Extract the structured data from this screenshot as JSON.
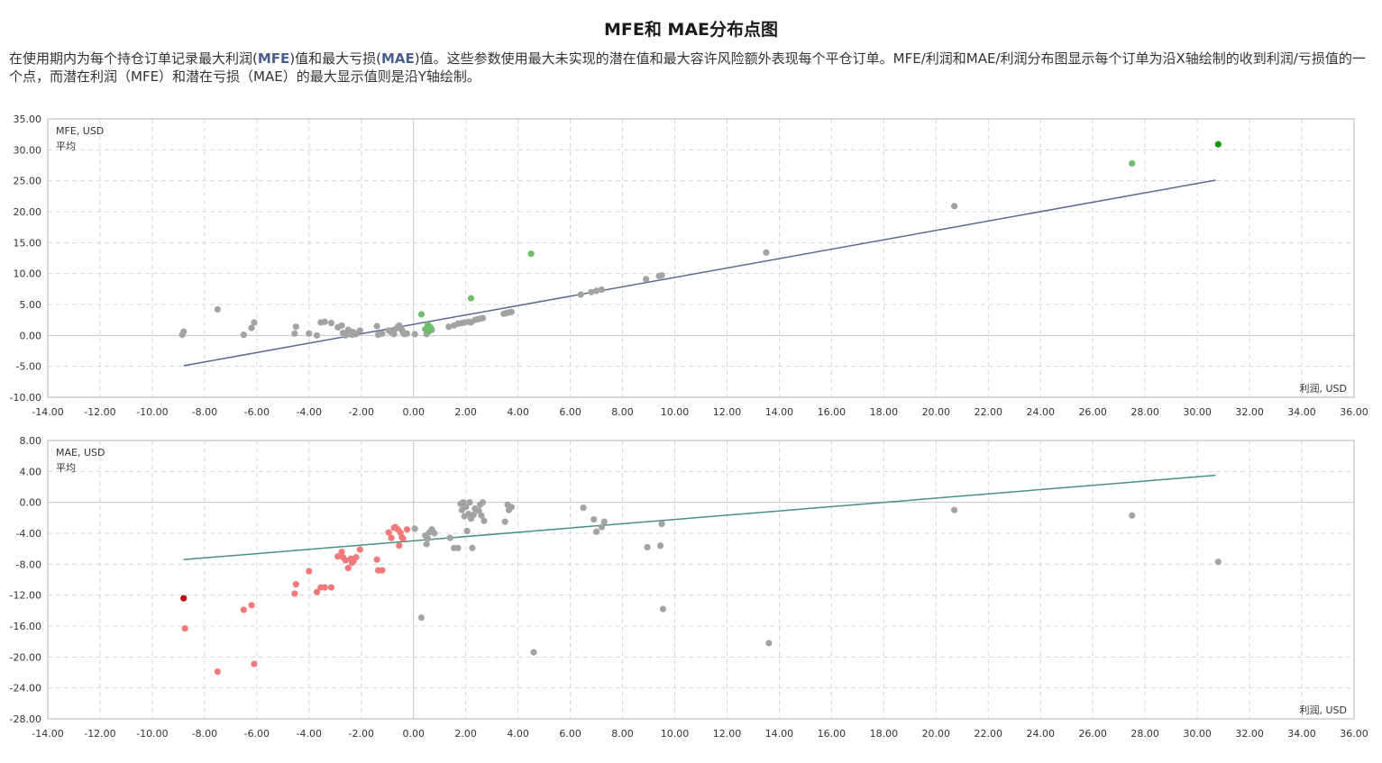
{
  "page": {
    "title": "MFE和 MAE分布点图",
    "desc": {
      "p1": "在使用期内为每个持仓订单记录最大利润(",
      "mfe": "MFE",
      "p2": ")值和最大亏损(",
      "mae": "MAE",
      "p3": ")值。这些参数使用最大未实现的潜在值和最大容许风险额外表现每个平仓订单。MFE/利润和MAE/利润分布图显示每个订单为沿X轴绘制的收到利润/亏损值的一个点，而潜在利润（MFE）和潜在亏损（MAE）的最大显示值则是沿Y轴绘制。"
    }
  },
  "colors": {
    "gray": "#a3a3a3",
    "mfe_green": "#6cbf6c",
    "mfe_green_dark": "#119911",
    "mfe_line": "#5a6a94",
    "mae_red": "#f07a7a",
    "mae_red_dark": "#b81010",
    "mae_line": "#4a9088"
  },
  "chart_data": [
    {
      "type": "scatter",
      "id": "mfe",
      "legend": [
        "MFE, USD",
        "平均"
      ],
      "xlabel": "利润, USD",
      "xlim": [
        -14,
        36
      ],
      "ylim": [
        -10,
        35
      ],
      "xticks": [
        "-14.00",
        "-12.00",
        "-10.00",
        "-8.00",
        "-6.00",
        "-4.00",
        "-2.00",
        "0.00",
        "2.00",
        "4.00",
        "6.00",
        "8.00",
        "10.00",
        "12.00",
        "14.00",
        "16.00",
        "18.00",
        "20.00",
        "22.00",
        "24.00",
        "26.00",
        "28.00",
        "30.00",
        "32.00",
        "34.00",
        "36.00"
      ],
      "yticks": [
        "-10.00",
        "-5.00",
        "0.00",
        "5.00",
        "10.00",
        "15.00",
        "20.00",
        "25.00",
        "30.00",
        "35.00"
      ],
      "avg_line": [
        [
          -8.8,
          -4.9
        ],
        [
          30.7,
          25.1
        ]
      ],
      "points_gray": [
        [
          -8.85,
          0.1
        ],
        [
          -8.8,
          0.6
        ],
        [
          -7.5,
          4.2
        ],
        [
          -6.5,
          0.1
        ],
        [
          -6.2,
          1.2
        ],
        [
          -6.1,
          2.1
        ],
        [
          -4.55,
          0.3
        ],
        [
          -4.5,
          1.4
        ],
        [
          -4.0,
          0.3
        ],
        [
          -3.7,
          0.0
        ],
        [
          -3.55,
          2.1
        ],
        [
          -3.4,
          2.2
        ],
        [
          -3.15,
          2.0
        ],
        [
          -2.9,
          1.3
        ],
        [
          -2.75,
          1.6
        ],
        [
          -2.7,
          0.4
        ],
        [
          -2.6,
          0.0
        ],
        [
          -2.5,
          0.9
        ],
        [
          -2.4,
          0.6
        ],
        [
          -2.35,
          0.1
        ],
        [
          -2.3,
          0.5
        ],
        [
          -2.2,
          0.2
        ],
        [
          -2.05,
          0.8
        ],
        [
          -1.4,
          1.5
        ],
        [
          -1.35,
          0.1
        ],
        [
          -1.2,
          0.3
        ],
        [
          -0.95,
          0.8
        ],
        [
          -0.85,
          0.5
        ],
        [
          -0.75,
          0.2
        ],
        [
          -0.7,
          1.0
        ],
        [
          -0.6,
          1.4
        ],
        [
          -0.55,
          1.6
        ],
        [
          -0.5,
          1.2
        ],
        [
          -0.45,
          0.9
        ],
        [
          -0.4,
          0.5
        ],
        [
          -0.35,
          0.2
        ],
        [
          -0.25,
          0.3
        ],
        [
          0.05,
          0.2
        ],
        [
          0.5,
          0.2
        ],
        [
          0.7,
          0.9
        ],
        [
          1.35,
          1.4
        ],
        [
          1.55,
          1.6
        ],
        [
          1.7,
          1.9
        ],
        [
          1.85,
          2.0
        ],
        [
          1.95,
          2.1
        ],
        [
          2.1,
          2.2
        ],
        [
          2.2,
          2.1
        ],
        [
          2.35,
          2.5
        ],
        [
          2.45,
          2.6
        ],
        [
          2.55,
          2.7
        ],
        [
          2.65,
          2.8
        ],
        [
          3.45,
          3.5
        ],
        [
          3.55,
          3.6
        ],
        [
          3.65,
          3.7
        ],
        [
          3.75,
          3.8
        ],
        [
          6.4,
          6.6
        ],
        [
          6.8,
          7.0
        ],
        [
          7.0,
          7.2
        ],
        [
          7.2,
          7.4
        ],
        [
          8.9,
          9.1
        ],
        [
          9.4,
          9.6
        ],
        [
          9.5,
          9.7
        ],
        [
          13.5,
          13.4
        ],
        [
          20.7,
          20.9
        ]
      ],
      "points_green": [
        [
          0.3,
          3.4
        ],
        [
          0.45,
          1.0
        ],
        [
          0.55,
          1.7
        ],
        [
          0.6,
          0.7
        ],
        [
          0.65,
          1.3
        ],
        [
          2.2,
          6.0
        ],
        [
          4.5,
          13.2
        ],
        [
          27.5,
          27.8
        ]
      ],
      "points_green_dark": [
        [
          30.8,
          30.9
        ]
      ]
    },
    {
      "type": "scatter",
      "id": "mae",
      "legend": [
        "MAE, USD",
        "平均"
      ],
      "xlabel": "利润, USD",
      "xlim": [
        -14,
        36
      ],
      "ylim": [
        -28,
        8
      ],
      "xticks": [
        "-14.00",
        "-12.00",
        "-10.00",
        "-8.00",
        "-6.00",
        "-4.00",
        "-2.00",
        "0.00",
        "2.00",
        "4.00",
        "6.00",
        "8.00",
        "10.00",
        "12.00",
        "14.00",
        "16.00",
        "18.00",
        "20.00",
        "22.00",
        "24.00",
        "26.00",
        "28.00",
        "30.00",
        "32.00",
        "34.00",
        "36.00"
      ],
      "yticks": [
        "-28.00",
        "-24.00",
        "-20.00",
        "-16.00",
        "-12.00",
        "-8.00",
        "-4.00",
        "0.00",
        "4.00",
        "8.00"
      ],
      "avg_line": [
        [
          -8.8,
          -7.4
        ],
        [
          30.7,
          3.5
        ]
      ],
      "points_red": [
        [
          -8.75,
          -16.3
        ],
        [
          -7.5,
          -21.9
        ],
        [
          -6.5,
          -13.9
        ],
        [
          -6.2,
          -13.3
        ],
        [
          -6.1,
          -20.9
        ],
        [
          -4.5,
          -10.6
        ],
        [
          -4.55,
          -11.8
        ],
        [
          -4.0,
          -8.9
        ],
        [
          -3.7,
          -11.6
        ],
        [
          -3.55,
          -11.0
        ],
        [
          -3.4,
          -11.0
        ],
        [
          -3.15,
          -11.0
        ],
        [
          -2.9,
          -7.0
        ],
        [
          -2.75,
          -6.4
        ],
        [
          -2.7,
          -7.1
        ],
        [
          -2.6,
          -7.5
        ],
        [
          -2.5,
          -8.5
        ],
        [
          -2.4,
          -7.3
        ],
        [
          -2.35,
          -7.8
        ],
        [
          -2.3,
          -7.6
        ],
        [
          -2.2,
          -7.1
        ],
        [
          -2.05,
          -6.1
        ],
        [
          -1.4,
          -7.4
        ],
        [
          -1.35,
          -8.8
        ],
        [
          -1.2,
          -8.8
        ],
        [
          -0.95,
          -3.9
        ],
        [
          -0.85,
          -4.6
        ],
        [
          -0.75,
          -3.3
        ],
        [
          -0.7,
          -3.2
        ],
        [
          -0.6,
          -3.5
        ],
        [
          -0.55,
          -5.6
        ],
        [
          -0.5,
          -3.9
        ],
        [
          -0.45,
          -4.5
        ],
        [
          -0.4,
          -4.7
        ],
        [
          -0.25,
          -3.5
        ]
      ],
      "points_red_dark": [
        [
          -8.8,
          -12.4
        ]
      ],
      "points_gray": [
        [
          0.05,
          -3.4
        ],
        [
          0.3,
          -14.9
        ],
        [
          0.45,
          -4.3
        ],
        [
          0.5,
          -5.4
        ],
        [
          0.55,
          -4.7
        ],
        [
          0.6,
          -3.9
        ],
        [
          0.7,
          -3.5
        ],
        [
          0.8,
          -4.0
        ],
        [
          1.4,
          -4.6
        ],
        [
          1.55,
          -5.9
        ],
        [
          1.7,
          -5.9
        ],
        [
          1.8,
          -0.2
        ],
        [
          1.85,
          -1.0
        ],
        [
          1.9,
          0.0
        ],
        [
          1.95,
          -1.8
        ],
        [
          2.0,
          -0.6
        ],
        [
          2.05,
          -3.7
        ],
        [
          2.1,
          -1.5
        ],
        [
          2.15,
          0.0
        ],
        [
          2.2,
          -2.1
        ],
        [
          2.25,
          -5.9
        ],
        [
          2.3,
          -1.6
        ],
        [
          2.35,
          -0.8
        ],
        [
          2.5,
          -1.1
        ],
        [
          2.55,
          -0.3
        ],
        [
          2.6,
          -1.7
        ],
        [
          2.65,
          0.0
        ],
        [
          2.7,
          -2.4
        ],
        [
          3.5,
          -2.5
        ],
        [
          3.6,
          -0.3
        ],
        [
          3.65,
          -1.0
        ],
        [
          3.75,
          -0.6
        ],
        [
          4.6,
          -19.4
        ],
        [
          6.5,
          -0.7
        ],
        [
          6.9,
          -2.2
        ],
        [
          7.0,
          -3.8
        ],
        [
          7.2,
          -3.2
        ],
        [
          7.3,
          -2.5
        ],
        [
          8.95,
          -5.8
        ],
        [
          9.45,
          -5.6
        ],
        [
          9.5,
          -2.8
        ],
        [
          9.55,
          -13.8
        ],
        [
          13.6,
          -18.2
        ],
        [
          20.7,
          -1.0
        ],
        [
          27.5,
          -1.7
        ],
        [
          30.8,
          -7.7
        ]
      ]
    }
  ]
}
